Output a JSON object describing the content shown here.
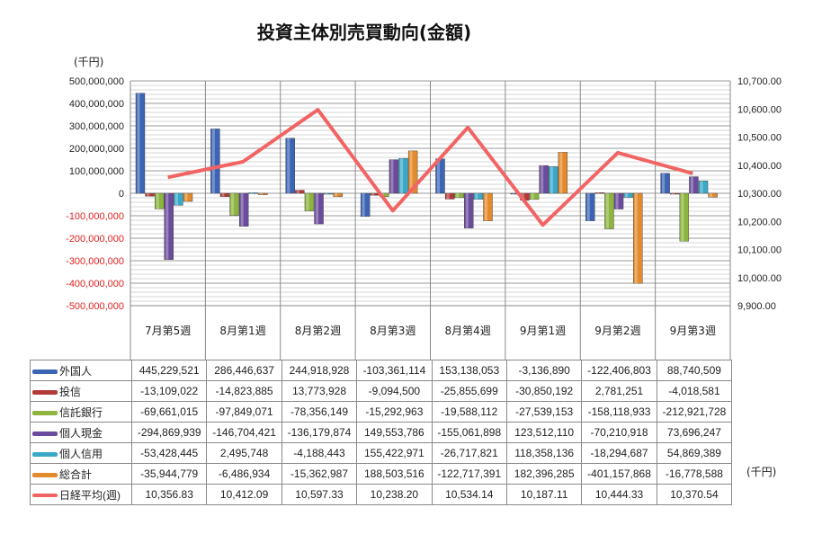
{
  "chart_data": {
    "type": "bar",
    "title": "投資主体別売買動向(金額)",
    "left_unit": "(千円)",
    "table_unit": "(千円)",
    "categories": [
      "7月第5週",
      "8月第1週",
      "8月第2週",
      "8月第3週",
      "8月第4週",
      "9月第1週",
      "9月第2週",
      "9月第3週"
    ],
    "left_axis": {
      "ylim": [
        -500000000,
        500000000
      ],
      "ticks": [
        "500,000,000",
        "400,000,000",
        "300,000,000",
        "200,000,000",
        "100,000,000",
        "0",
        "-100,000,000",
        "-200,000,000",
        "-300,000,000",
        "-400,000,000",
        "-500,000,000"
      ]
    },
    "right_axis": {
      "ylim": [
        9900,
        10700
      ],
      "ticks": [
        "10,700.00",
        "10,600.00",
        "10,500.00",
        "10,400.00",
        "10,300.00",
        "10,200.00",
        "10,100.00",
        "10,000.00",
        "9,900.00"
      ]
    },
    "grid": true,
    "series": [
      {
        "name": "外国人",
        "type": "bar",
        "axis": "left",
        "color": "#3b64b4",
        "values": [
          445229521,
          286446637,
          244918928,
          -103361114,
          153138053,
          -3136890,
          -122406803,
          88740509
        ],
        "labels": [
          "445,229,521",
          "286,446,637",
          "244,918,928",
          "-103,361,114",
          "153,138,053",
          "-3,136,890",
          "-122,406,803",
          "88,740,509"
        ]
      },
      {
        "name": "投信",
        "type": "bar",
        "axis": "left",
        "color": "#b43a3a",
        "values": [
          -13109022,
          -14823885,
          13773928,
          -9094500,
          -25855699,
          -30850192,
          2781251,
          -4018581
        ],
        "labels": [
          "-13,109,022",
          "-14,823,885",
          "13,773,928",
          "-9,094,500",
          "-25,855,699",
          "-30,850,192",
          "2,781,251",
          "-4,018,581"
        ]
      },
      {
        "name": "信託銀行",
        "type": "bar",
        "axis": "left",
        "color": "#8db43e",
        "values": [
          -69661015,
          -97849071,
          -78356149,
          -15292963,
          -19588112,
          -27539153,
          -158118933,
          -212921728
        ],
        "labels": [
          "-69,661,015",
          "-97,849,071",
          "-78,356,149",
          "-15,292,963",
          "-19,588,112",
          "-27,539,153",
          "-158,118,933",
          "-212,921,728"
        ]
      },
      {
        "name": "個人現金",
        "type": "bar",
        "axis": "left",
        "color": "#6b4c9c",
        "values": [
          -294869939,
          -146704421,
          -136179874,
          149553786,
          -155061898,
          123512110,
          -70210918,
          73696247
        ],
        "labels": [
          "-294,869,939",
          "-146,704,421",
          "-136,179,874",
          "149,553,786",
          "-155,061,898",
          "123,512,110",
          "-70,210,918",
          "73,696,247"
        ]
      },
      {
        "name": "個人信用",
        "type": "bar",
        "axis": "left",
        "color": "#3aa9c9",
        "values": [
          -53428445,
          2495748,
          -4188443,
          155422971,
          -26717821,
          118358136,
          -18294687,
          54869389
        ],
        "labels": [
          "-53,428,445",
          "2,495,748",
          "-4,188,443",
          "155,422,971",
          "-26,717,821",
          "118,358,136",
          "-18,294,687",
          "54,869,389"
        ]
      },
      {
        "name": "総合計",
        "type": "bar",
        "axis": "left",
        "color": "#e28a2c",
        "values": [
          -35944779,
          -6486934,
          -15362987,
          188503516,
          -122717391,
          182396285,
          -401157868,
          -16778588
        ],
        "labels": [
          "-35,944,779",
          "-6,486,934",
          "-15,362,987",
          "188,503,516",
          "-122,717,391",
          "182,396,285",
          "-401,157,868",
          "-16,778,588"
        ]
      },
      {
        "name": "日経平均(週)",
        "type": "line",
        "axis": "right",
        "color": "#f26464",
        "values": [
          10356.83,
          10412.09,
          10597.33,
          10238.2,
          10534.14,
          10187.11,
          10444.33,
          10370.54
        ],
        "labels": [
          "10,356.83",
          "10,412.09",
          "10,597.33",
          "10,238.20",
          "10,534.14",
          "10,187.11",
          "10,444.33",
          "10,370.54"
        ]
      }
    ]
  }
}
